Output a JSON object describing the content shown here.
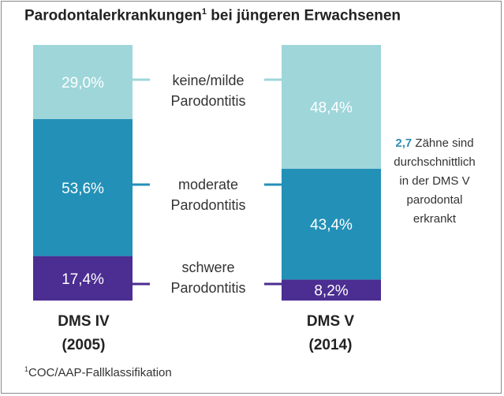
{
  "title": {
    "text": "Parodontalerkrankungen",
    "sup": "1",
    "rest": " bei jüngeren Erwachsenen"
  },
  "colors": {
    "light": "#9ed6da",
    "mid": "#2390b7",
    "dark": "#4c2d91",
    "accent": "#2f8db3"
  },
  "chart_data": {
    "type": "bar",
    "stacked": true,
    "title": "Parodontalerkrankungen¹ bei jüngeren Erwachsenen",
    "categories": [
      "DMS IV (2005)",
      "DMS V (2014)"
    ],
    "series": [
      {
        "name": "schwere Parodontitis",
        "values": [
          17.4,
          8.2
        ],
        "labels": [
          "17,4%",
          "8,2%"
        ]
      },
      {
        "name": "moderate Parodontitis",
        "values": [
          53.6,
          43.4
        ],
        "labels": [
          "53,6%",
          "43,4%"
        ]
      },
      {
        "name": "keine/milde Parodontitis",
        "values": [
          29.0,
          48.4
        ],
        "labels": [
          "29,0%",
          "48,4%"
        ]
      }
    ],
    "ylim": [
      0,
      100
    ]
  },
  "bars": [
    {
      "line1": "DMS IV",
      "line2": "(2005)"
    },
    {
      "line1": "DMS V",
      "line2": "(2014)"
    }
  ],
  "category_labels": [
    {
      "line1": "keine/milde",
      "line2": "Parodontitis"
    },
    {
      "line1": "moderate",
      "line2": "Parodontitis"
    },
    {
      "line1": "schwere",
      "line2": "Parodontitis"
    }
  ],
  "note": {
    "highlight": "2,7",
    "line1": " Zähne sind",
    "line2": "durchschnittlich",
    "line3": "in der DMS V",
    "line4": "parodontal",
    "line5": "erkrankt"
  },
  "footnote": {
    "sup": "1",
    "text": "COC/AAP-Fallklassifikation"
  }
}
